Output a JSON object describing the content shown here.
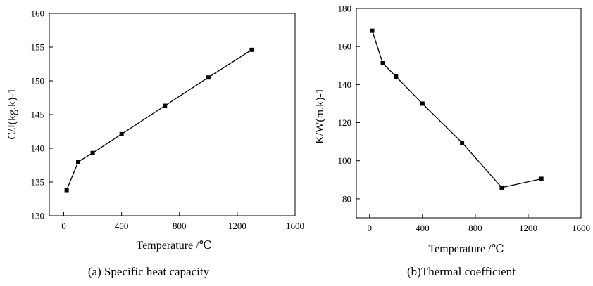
{
  "chart_data": [
    {
      "type": "line",
      "caption": "(a) Specific heat capacity",
      "xlabel": "Temperature /℃",
      "ylabel": "C/J(kg.k)-1",
      "xlim": [
        -100,
        1600
      ],
      "ylim": [
        130,
        160
      ],
      "xticks": [
        0,
        400,
        800,
        1200,
        1600
      ],
      "yticks": [
        130,
        135,
        140,
        145,
        150,
        155,
        160
      ],
      "grid": false,
      "marker": "square",
      "x": [
        20,
        100,
        200,
        400,
        700,
        1000,
        1300
      ],
      "series": [
        {
          "values": [
            133.8,
            138.0,
            139.3,
            142.1,
            146.3,
            150.5,
            154.6
          ]
        }
      ]
    },
    {
      "type": "line",
      "caption": "(b)Thermal coefficient",
      "xlabel": "Temperature /℃",
      "ylabel": "K/W(m.k)-1",
      "xlim": [
        -100,
        1600
      ],
      "ylim": [
        70,
        180
      ],
      "xticks": [
        0,
        400,
        800,
        1200,
        1600
      ],
      "yticks": [
        80,
        100,
        120,
        140,
        160,
        180
      ],
      "grid": false,
      "marker": "square",
      "x": [
        20,
        100,
        200,
        400,
        700,
        1000,
        1300
      ],
      "series": [
        {
          "values": [
            168.3,
            151.2,
            144.2,
            130.0,
            109.5,
            85.9,
            90.5
          ]
        }
      ]
    }
  ]
}
